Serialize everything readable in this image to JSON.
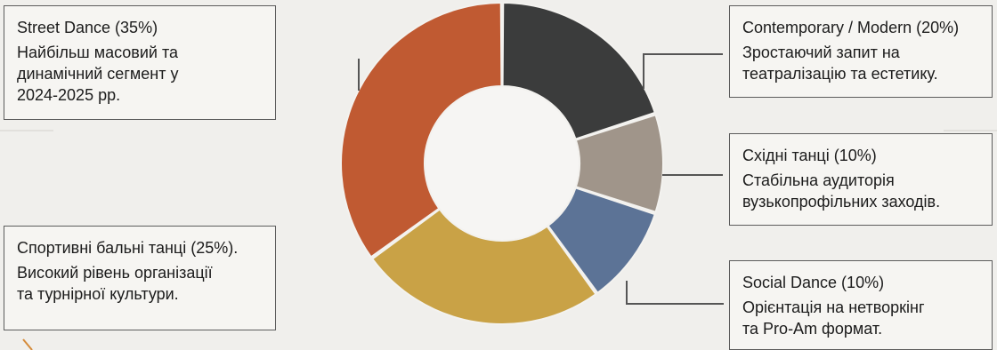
{
  "chart_data": {
    "type": "pie",
    "variant": "donut",
    "categories": [
      "Contemporary / Modern",
      "Східні танці",
      "Social Dance",
      "Спортивні бальні танці",
      "Street Dance"
    ],
    "values": [
      20,
      10,
      10,
      25,
      35
    ],
    "unit": "%",
    "colors": [
      "#3b3c3c",
      "#a0958a",
      "#5c7396",
      "#c9a246",
      "#c05a32"
    ],
    "start": "12 o'clock",
    "direction": "clockwise"
  },
  "callouts": [
    {
      "id": "street",
      "title": "Street Dance (35%)",
      "desc": "Найбільш масовий та\nдинамічний сегмент у\n2024-2025 рр."
    },
    {
      "id": "contemporary",
      "title": "Contemporary / Modern (20%)",
      "desc": "Зростаючий запит на\nтеатралізацію та естетику."
    },
    {
      "id": "eastern",
      "title": "Східні танці (10%)",
      "desc": "Стабільна аудиторія\nвузькопрофільних заходів."
    },
    {
      "id": "ballroom",
      "title": "Спортивні бальні танці (25%).",
      "desc": "Високий рівень організації\nта турнірної культури."
    },
    {
      "id": "social",
      "title": "Social Dance (10%)",
      "desc": "Орієнтація на нетворкінг\nта Pro-Am формат."
    }
  ]
}
